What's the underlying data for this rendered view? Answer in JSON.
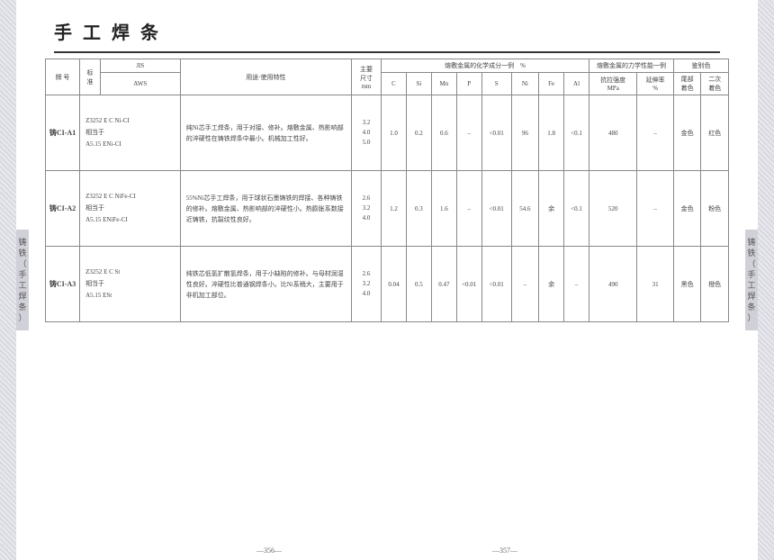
{
  "title": "手工焊条",
  "side_label": "铸铁（手工焊条）",
  "page_left": "—356—",
  "page_right": "—357—",
  "headers": {
    "model": "牌 号",
    "std": "标\n准",
    "jis": "JIS",
    "aws": "AWS",
    "usage": "用途·使用特性",
    "size": "主要\n尺寸\nmm",
    "chem_group": "熔敷金属的化学成分一例　%",
    "mech_group": "熔敷金属的力学性能一例",
    "color_group": "鉴别色",
    "C": "C",
    "Si": "Si",
    "Mn": "Mn",
    "P": "P",
    "S": "S",
    "Ni": "Ni",
    "Fe": "Fe",
    "Al": "Al",
    "tensile": "抗拉强度\nMPa",
    "elong": "延伸率\n%",
    "tail": "尾部\n着色",
    "second": "二次\n着色"
  },
  "rows": [
    {
      "model": "铸CI-A1",
      "std": "Z3252 E C Ni-CI\n相当于\nA5.15 ENi-CI",
      "usage": "纯Ni芯手工焊条，用于对接、修补。熔敷金属、热影响部的淬硬性在铸铁焊条中最小。机械加工性好。",
      "size": "3.2\n4.0\n5.0",
      "chem": {
        "C": "1.0",
        "Si": "0.2",
        "Mn": "0.6",
        "P": "–",
        "S": "<0.01",
        "Ni": "96",
        "Fe": "1.8",
        "Al": "<0.1"
      },
      "mech": {
        "tensile": "480",
        "elong": "–"
      },
      "color": {
        "tail": "金色",
        "second": "红色"
      }
    },
    {
      "model": "铸CI-A2",
      "std": "Z3252 E C NiFe-CI\n相当于\nA5.15 ENiFe-CI",
      "usage": "55%Ni芯手工焊条，用于球状石墨铸铁的焊接、各种铸铁的修补。熔敷金属、热影响部的淬硬性小。热膨胀系数接近铸铁，抗裂纹性良好。",
      "size": "2.6\n3.2\n4.0",
      "chem": {
        "C": "1.2",
        "Si": "0.3",
        "Mn": "1.6",
        "P": "–",
        "S": "<0.01",
        "Ni": "54.6",
        "Fe": "余",
        "Al": "<0.1"
      },
      "mech": {
        "tensile": "520",
        "elong": "–"
      },
      "color": {
        "tail": "金色",
        "second": "粉色"
      }
    },
    {
      "model": "铸CI-A3",
      "std": "Z3252 E C St\n相当于\nA5.15 ESt",
      "usage": "纯铁芯低氢扩散氢焊条，用于小缺陷的修补。与母材润湿性良好。淬硬性比普通钢焊条小。比Ni系稍大，主要用于非机加工部位。",
      "size": "2.6\n3.2\n4.0",
      "chem": {
        "C": "0.04",
        "Si": "0.5",
        "Mn": "0.47",
        "P": "<0.01",
        "S": "<0.01",
        "Ni": "–",
        "Fe": "余",
        "Al": "–"
      },
      "mech": {
        "tensile": "490",
        "elong": "31"
      },
      "color": {
        "tail": "黑色",
        "second": "橙色"
      }
    }
  ]
}
